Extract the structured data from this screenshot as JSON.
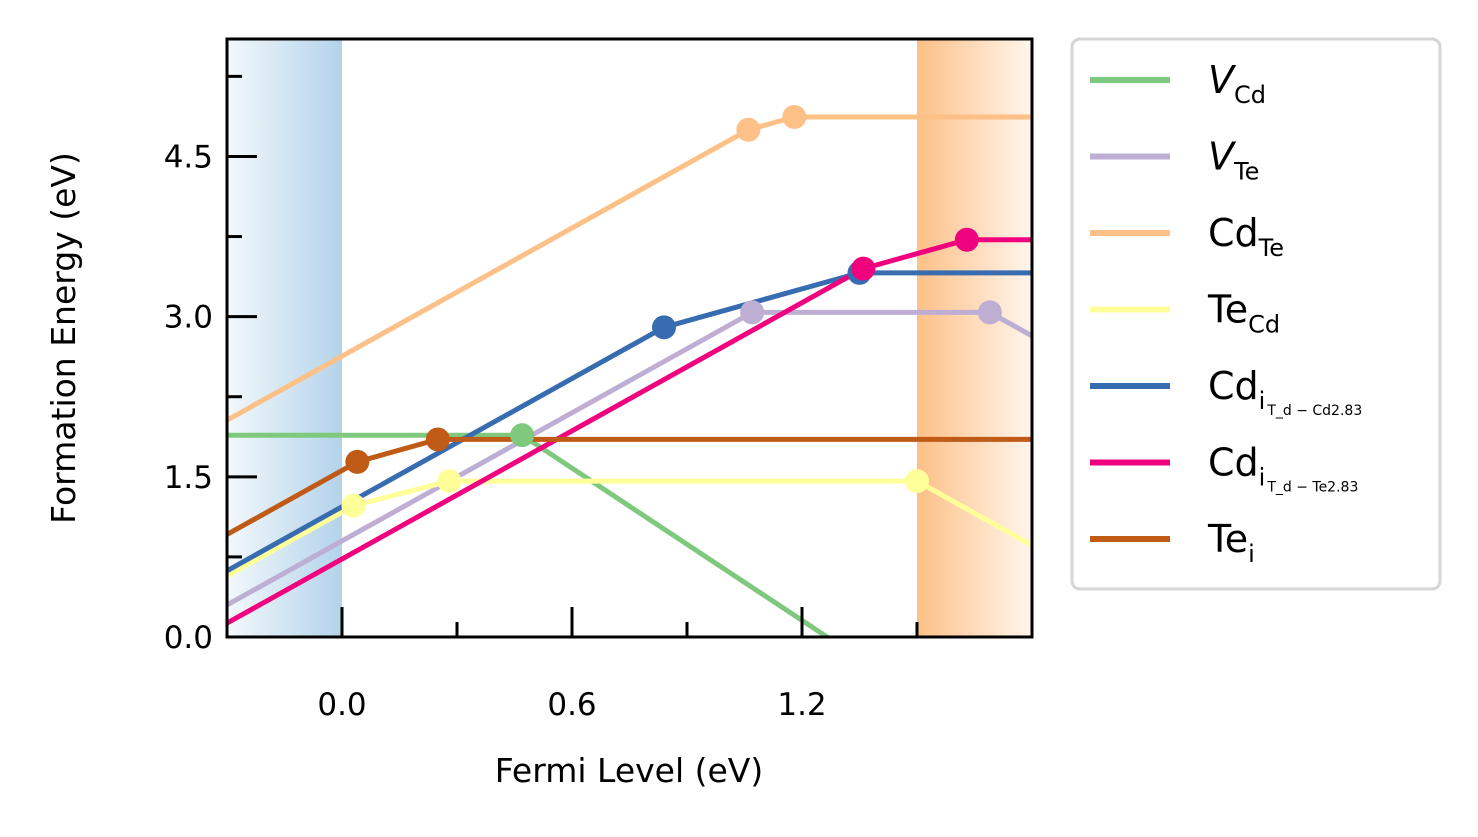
{
  "chart_data": {
    "type": "line",
    "xlabel": "Fermi Level (eV)",
    "ylabel": "Formation Energy (eV)",
    "xlim": [
      -0.3,
      1.8
    ],
    "ylim": [
      0.0,
      5.6
    ],
    "xticks": [
      0.0,
      0.6,
      1.2
    ],
    "xtick_labels": [
      "0.0",
      "0.6",
      "1.2"
    ],
    "yticks": [
      0.0,
      1.5,
      3.0,
      4.5
    ],
    "ytick_labels": [
      "0.0",
      "1.5",
      "3.0",
      "4.5"
    ],
    "grid": false,
    "legend_position": "outside-right",
    "shaded_regions": [
      {
        "name": "valence-band",
        "x": [
          -0.3,
          0.0
        ],
        "color": "#b3d3ea"
      },
      {
        "name": "conduction-band",
        "x": [
          1.5,
          1.8
        ],
        "color": "#fdc087"
      }
    ],
    "series": [
      {
        "name": "V_Cd",
        "label_main": "V",
        "label_sub": "Cd",
        "label_subsub": "",
        "italic": true,
        "color": "#7fc97f",
        "x": [
          -0.3,
          0.47,
          1.8
        ],
        "y": [
          1.89,
          1.89,
          -1.27
        ],
        "markers": [
          [
            0.47,
            1.89
          ]
        ]
      },
      {
        "name": "V_Te",
        "label_main": "V",
        "label_sub": "Te",
        "label_subsub": "",
        "italic": true,
        "color": "#beaed4",
        "x": [
          -0.3,
          1.07,
          1.69,
          1.8
        ],
        "y": [
          0.3,
          3.04,
          3.04,
          2.82
        ],
        "markers": [
          [
            1.07,
            3.04
          ],
          [
            1.69,
            3.04
          ]
        ]
      },
      {
        "name": "Cd_Te",
        "label_main": "Cd",
        "label_sub": "Te",
        "label_subsub": "",
        "italic": false,
        "color": "#fdc086",
        "x": [
          -0.3,
          1.06,
          1.18,
          1.8
        ],
        "y": [
          2.03,
          4.75,
          4.87,
          4.87
        ],
        "markers": [
          [
            1.06,
            4.75
          ],
          [
            1.18,
            4.87
          ]
        ]
      },
      {
        "name": "Te_Cd",
        "label_main": "Te",
        "label_sub": "Cd",
        "label_subsub": "",
        "italic": false,
        "color": "#ffff99",
        "x": [
          -0.3,
          0.03,
          0.28,
          1.5,
          1.8
        ],
        "y": [
          0.57,
          1.23,
          1.46,
          1.46,
          0.86
        ],
        "markers": [
          [
            0.03,
            1.23
          ],
          [
            0.28,
            1.46
          ],
          [
            1.5,
            1.46
          ]
        ]
      },
      {
        "name": "Cd_i,Td-Cd2.83",
        "label_main": "Cd",
        "label_sub": "i",
        "label_subsub": "T_d − Cd2.83",
        "italic": false,
        "color": "#386cb0",
        "x": [
          -0.3,
          0.84,
          1.35,
          1.8
        ],
        "y": [
          0.62,
          2.9,
          3.41,
          3.41
        ],
        "markers": [
          [
            0.84,
            2.9
          ],
          [
            1.35,
            3.41
          ]
        ]
      },
      {
        "name": "Cd_i,Td-Te2.83",
        "label_main": "Cd",
        "label_sub": "i",
        "label_subsub": "T_d − Te2.83",
        "italic": false,
        "color": "#f0027f",
        "x": [
          -0.3,
          1.36,
          1.63,
          1.8
        ],
        "y": [
          0.13,
          3.45,
          3.72,
          3.72
        ],
        "markers": [
          [
            1.36,
            3.45
          ],
          [
            1.63,
            3.72
          ]
        ]
      },
      {
        "name": "Te_i",
        "label_main": "Te",
        "label_sub": "i",
        "label_subsub": "",
        "italic": false,
        "color": "#bf5b17",
        "x": [
          -0.3,
          0.04,
          0.25,
          1.8
        ],
        "y": [
          0.96,
          1.64,
          1.85,
          1.85
        ],
        "markers": [
          [
            0.04,
            1.64
          ],
          [
            0.25,
            1.85
          ]
        ]
      }
    ]
  }
}
